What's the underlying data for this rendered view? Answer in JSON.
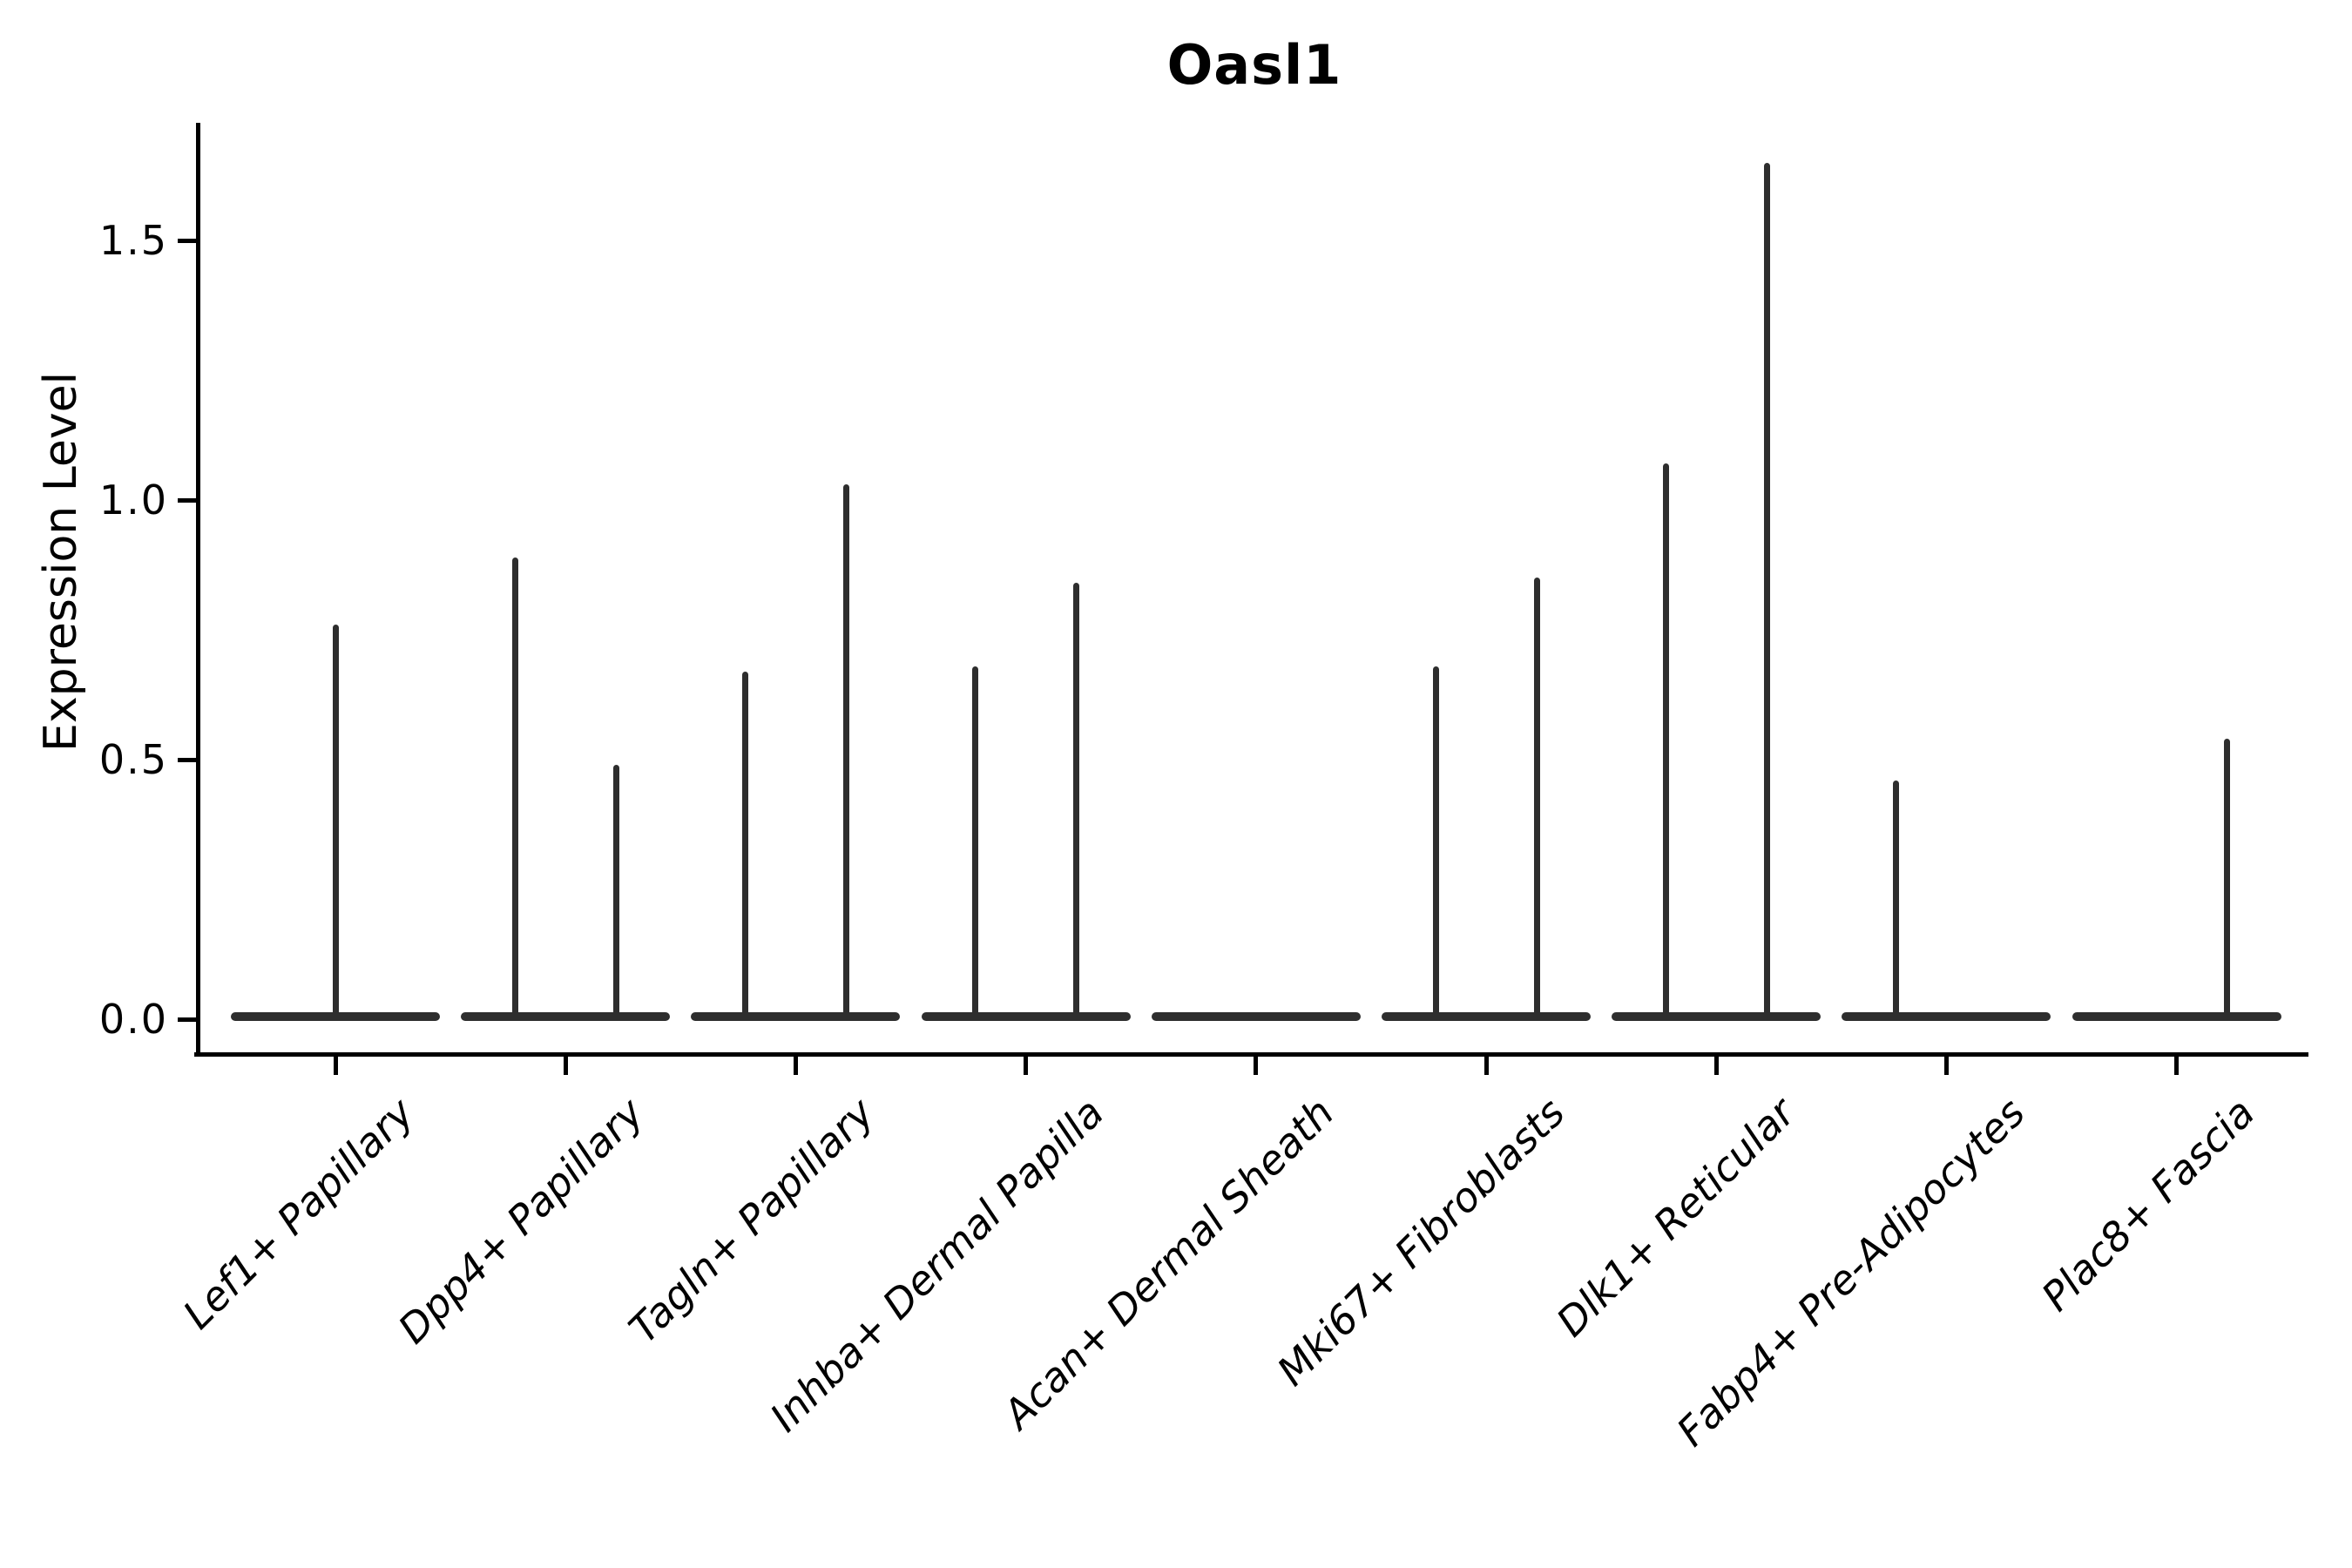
{
  "chart_data": {
    "type": "violin",
    "title": "Oasl1",
    "xlabel": "",
    "ylabel": "Expression Level",
    "yticks": [
      "0.0",
      "0.5",
      "1.0",
      "1.5"
    ],
    "ytick_values": [
      0.0,
      0.5,
      1.0,
      1.5
    ],
    "ylim": [
      -0.07,
      1.73
    ],
    "grid": false,
    "legend_position": "none",
    "categories": [
      "Lef1+ Papillary",
      "Dpp4+ Papillary",
      "Tagln+ Papillary",
      "Inhba+ Dermal Papilla",
      "Acan+ Dermal Sheath",
      "Mki67+ Fibroblasts",
      "Dlk1+ Reticular",
      "Fabp4+ Pre-Adipocytes",
      "Plac8+ Fascia"
    ],
    "violins": [
      {
        "category": "Lef1+ Papillary",
        "spikes": [
          {
            "position": "center",
            "max_expression": 0.76
          }
        ]
      },
      {
        "category": "Dpp4+ Papillary",
        "spikes": [
          {
            "position": "left",
            "max_expression": 0.89
          },
          {
            "position": "right",
            "max_expression": 0.49
          }
        ]
      },
      {
        "category": "Tagln+ Papillary",
        "spikes": [
          {
            "position": "left",
            "max_expression": 0.67
          },
          {
            "position": "right",
            "max_expression": 1.03
          }
        ]
      },
      {
        "category": "Inhba+ Dermal Papilla",
        "spikes": [
          {
            "position": "left",
            "max_expression": 0.68
          },
          {
            "position": "right",
            "max_expression": 0.84
          }
        ]
      },
      {
        "category": "Acan+ Dermal Sheath",
        "spikes": []
      },
      {
        "category": "Mki67+ Fibroblasts",
        "spikes": [
          {
            "position": "left",
            "max_expression": 0.68
          },
          {
            "position": "right",
            "max_expression": 0.85
          }
        ]
      },
      {
        "category": "Dlk1+ Reticular",
        "spikes": [
          {
            "position": "left",
            "max_expression": 1.07
          },
          {
            "position": "right",
            "max_expression": 1.65
          }
        ]
      },
      {
        "category": "Fabp4+ Pre-Adipocytes",
        "spikes": [
          {
            "position": "left",
            "max_expression": 0.46
          }
        ]
      },
      {
        "category": "Plac8+ Fascia",
        "spikes": [
          {
            "position": "right",
            "max_expression": 0.54
          }
        ]
      }
    ],
    "colors": {
      "violin": "#2e2e2e",
      "axis": "#000000",
      "text": "#000000",
      "background": "#ffffff"
    }
  }
}
